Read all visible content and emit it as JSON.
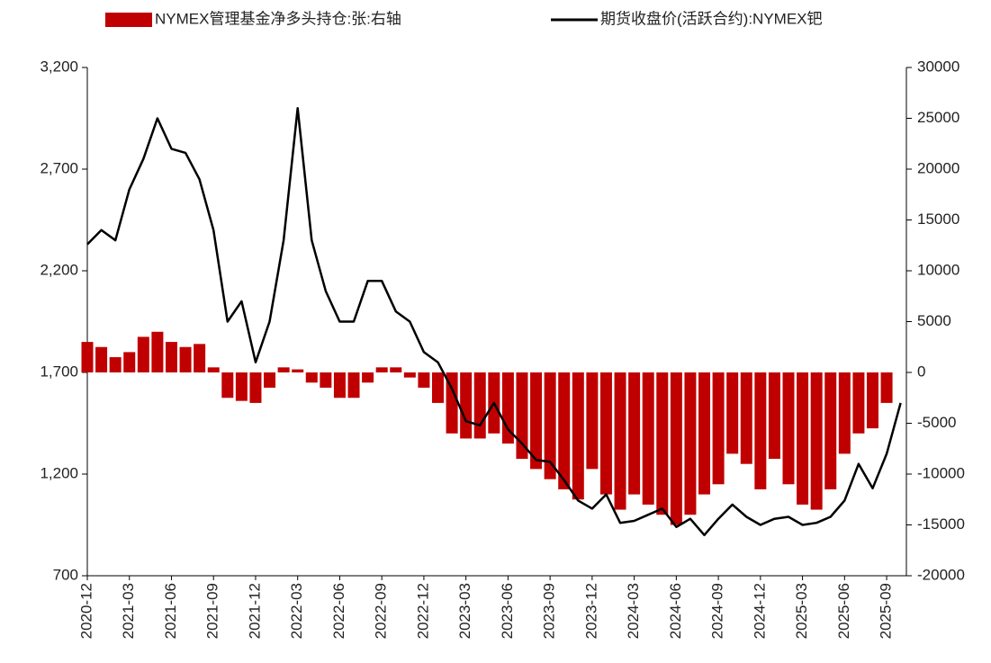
{
  "chart_data": {
    "type": "bar-line",
    "categories": [
      "2020-12",
      null,
      null,
      "2021-03",
      null,
      null,
      "2021-06",
      null,
      null,
      "2021-09",
      null,
      null,
      "2021-12",
      null,
      null,
      "2022-03",
      null,
      null,
      "2022-06",
      null,
      null,
      "2022-09",
      null,
      null,
      "2022-12",
      null,
      null,
      "2023-03",
      null,
      null,
      "2023-06",
      null,
      null,
      "2023-09",
      null,
      null,
      "2023-12",
      null,
      null,
      "2024-03",
      null,
      null,
      "2024-06",
      null,
      null,
      "2024-09",
      null,
      null,
      "2024-12",
      null,
      null,
      "2025-03",
      null,
      null,
      "2025-06",
      null,
      null,
      "2025-09",
      null
    ],
    "series": [
      {
        "name": "NYMEX管理基金净多头持仓:张:右轴",
        "type": "bar",
        "axis": "y2",
        "color": "#c00000",
        "values": [
          3000,
          2500,
          1500,
          2000,
          3500,
          4000,
          3000,
          2500,
          2800,
          500,
          -2500,
          -2800,
          -3000,
          -1500,
          500,
          300,
          -1000,
          -1500,
          -2500,
          -2500,
          -1000,
          500,
          500,
          -500,
          -1500,
          -3000,
          -6000,
          -6500,
          -6500,
          -6000,
          -7000,
          -8500,
          -9500,
          -10500,
          -11500,
          -12500,
          -9500,
          -12000,
          -13500,
          -12000,
          -13000,
          -14000,
          -15000,
          -14000,
          -12000,
          -11000,
          -8000,
          -9000,
          -11500,
          -8500,
          -11000,
          -13000,
          -13500,
          -11500,
          -8000,
          -6000,
          -5500,
          -3000,
          null
        ]
      },
      {
        "name": "期货收盘价(活跃合约):NYMEX钯",
        "type": "line",
        "axis": "y",
        "color": "#000000",
        "values": [
          2330,
          2400,
          2350,
          2600,
          2750,
          2950,
          2800,
          2780,
          2650,
          2400,
          1950,
          2050,
          1750,
          1950,
          2350,
          3000,
          2350,
          2100,
          1950,
          1950,
          2150,
          2150,
          2000,
          1950,
          1800,
          1750,
          1620,
          1460,
          1440,
          1550,
          1420,
          1350,
          1270,
          1260,
          1170,
          1070,
          1030,
          1100,
          960,
          970,
          1000,
          1030,
          940,
          980,
          900,
          980,
          1050,
          990,
          950,
          980,
          990,
          950,
          960,
          990,
          1070,
          1250,
          1130,
          1300,
          1550
        ]
      }
    ],
    "ylim": [
      700,
      3200
    ],
    "yticks": [
      700,
      {
        "value": 1200,
        "label": "1,200"
      },
      {
        "value": 1700,
        "label": "1,700"
      },
      {
        "value": 2200,
        "label": "2,200"
      },
      {
        "value": 2700,
        "label": "2,700"
      },
      {
        "value": 3200,
        "label": "3,200"
      }
    ],
    "y2lim": [
      -20000,
      30000
    ],
    "y2ticks": [
      -20000,
      -15000,
      -10000,
      -5000,
      0,
      5000,
      10000,
      15000,
      20000,
      25000,
      30000
    ],
    "legend": "top"
  }
}
